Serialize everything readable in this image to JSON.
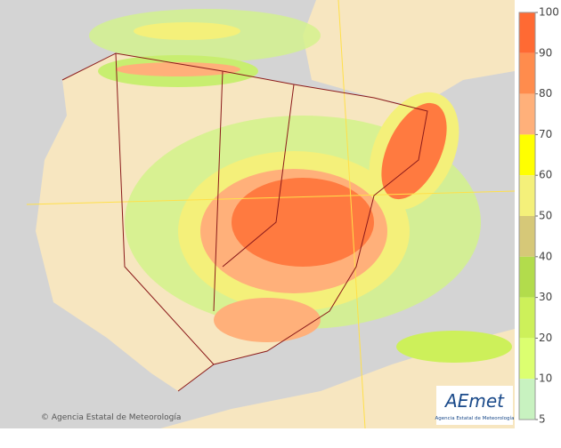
{
  "legend": {
    "ticks": [
      100,
      90,
      80,
      70,
      60,
      50,
      40,
      30,
      20,
      10,
      5
    ],
    "colors": [
      "#ff6a33",
      "#ff8c4d",
      "#ffb07a",
      "#ffff00",
      "#f4f07a",
      "#d6c878",
      "#b2dc4c",
      "#cdf05a",
      "#dcff70",
      "#c8f2c0"
    ]
  },
  "credit": "© Agencia Estatal de Meteorología",
  "logo": {
    "name": "AEmet",
    "subtitle": "Agencia Estatal de Meteorología"
  }
}
